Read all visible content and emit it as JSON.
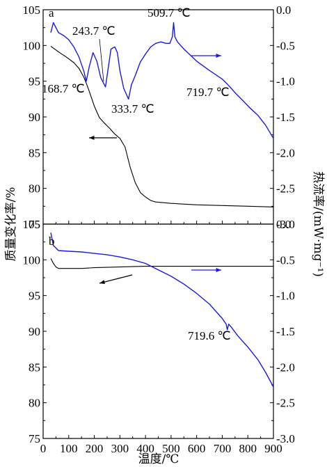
{
  "chart_data": [
    {
      "type": "line",
      "panel_label": "a",
      "xlim": [
        0,
        900
      ],
      "ylim_left": [
        75,
        105
      ],
      "ylim_right": [
        -3.0,
        0.0
      ],
      "x_ticks": [],
      "left_ticks": [
        {
          "value": 105,
          "label": "105"
        },
        {
          "value": 100,
          "label": "100"
        },
        {
          "value": 95,
          "label": "95"
        },
        {
          "value": 90,
          "label": "90"
        },
        {
          "value": 85,
          "label": "85"
        },
        {
          "value": 80,
          "label": "80"
        },
        {
          "value": 75,
          "label": "75"
        }
      ],
      "right_ticks": [
        {
          "value": 0.0,
          "label": "0.0"
        },
        {
          "value": -0.5,
          "label": "-0.5"
        },
        {
          "value": -1.0,
          "label": "-1.0"
        },
        {
          "value": -1.5,
          "label": "-1.5"
        },
        {
          "value": -2.0,
          "label": "-2.0"
        },
        {
          "value": -2.5,
          "label": "-2.5"
        },
        {
          "value": -3.0,
          "label": "-3.0"
        }
      ],
      "series": [
        {
          "axis": "left",
          "color": "#000000",
          "x": [
            30,
            60,
            90,
            120,
            140,
            160,
            170,
            180,
            200,
            220,
            240,
            260,
            280,
            300,
            320,
            340,
            360,
            380,
            400,
            420,
            440,
            500,
            600,
            700,
            800,
            900
          ],
          "y": [
            99.9,
            99.1,
            98.4,
            97.6,
            96.8,
            95.5,
            94.6,
            93.6,
            91.5,
            89.9,
            89.1,
            88.4,
            87.6,
            87.0,
            85.8,
            83.0,
            80.8,
            79.4,
            78.8,
            78.3,
            78.1,
            77.9,
            77.7,
            77.6,
            77.5,
            77.4
          ]
        },
        {
          "axis": "right",
          "color": "#1a1ae6",
          "x": [
            30,
            40,
            60,
            80,
            100,
            120,
            140,
            160,
            168.7,
            180,
            195,
            210,
            225,
            243.7,
            255,
            265,
            280,
            290,
            300,
            315,
            333.7,
            345,
            360,
            380,
            400,
            420,
            440,
            460,
            480,
            495,
            505,
            509.7,
            515,
            525,
            550,
            600,
            650,
            700,
            719.7,
            730,
            750,
            780,
            810,
            840,
            870,
            900
          ],
          "y": [
            -0.32,
            -0.18,
            -0.32,
            -0.36,
            -0.42,
            -0.52,
            -0.66,
            -0.87,
            -1.0,
            -0.8,
            -0.6,
            -0.72,
            -0.95,
            -1.08,
            -0.8,
            -0.55,
            -0.52,
            -0.6,
            -0.85,
            -1.1,
            -1.25,
            -1.05,
            -0.92,
            -0.73,
            -0.62,
            -0.52,
            -0.47,
            -0.45,
            -0.47,
            -0.47,
            -0.38,
            -0.18,
            -0.38,
            -0.45,
            -0.55,
            -0.72,
            -0.85,
            -0.97,
            -1.04,
            -1.08,
            -1.16,
            -1.27,
            -1.38,
            -1.48,
            -1.62,
            -1.8
          ]
        }
      ],
      "annotations": [
        "168.7 ℃",
        "243.7 ℃",
        "333.7 ℃",
        "509.7 ℃",
        "719.7 ℃"
      ]
    },
    {
      "type": "line",
      "panel_label": "b",
      "xlim": [
        0,
        900
      ],
      "ylim_left": [
        75,
        105
      ],
      "ylim_right": [
        -3.0,
        0.0
      ],
      "x_ticks": [
        {
          "value": 0,
          "label": "0"
        },
        {
          "value": 100,
          "label": "100"
        },
        {
          "value": 200,
          "label": "200"
        },
        {
          "value": 300,
          "label": "300"
        },
        {
          "value": 400,
          "label": "400"
        },
        {
          "value": 500,
          "label": "500"
        },
        {
          "value": 600,
          "label": "600"
        },
        {
          "value": 700,
          "label": "700"
        },
        {
          "value": 800,
          "label": "800"
        },
        {
          "value": 900,
          "label": "900"
        }
      ],
      "left_ticks": [
        {
          "value": 105,
          "label": "105"
        },
        {
          "value": 100,
          "label": "100"
        },
        {
          "value": 95,
          "label": "95"
        },
        {
          "value": 90,
          "label": "90"
        },
        {
          "value": 85,
          "label": "85"
        },
        {
          "value": 80,
          "label": "80"
        },
        {
          "value": 75,
          "label": "75"
        }
      ],
      "right_ticks": [
        {
          "value": 0.0,
          "label": "0.0"
        },
        {
          "value": -0.5,
          "label": "-0.5"
        },
        {
          "value": -1.0,
          "label": "-1.0"
        },
        {
          "value": -1.5,
          "label": "-1.5"
        },
        {
          "value": -2.0,
          "label": "-2.0"
        },
        {
          "value": -2.5,
          "label": "-2.5"
        },
        {
          "value": -3.0,
          "label": "-3.0"
        }
      ],
      "series": [
        {
          "axis": "left",
          "color": "#000000",
          "x": [
            30,
            40,
            50,
            60,
            80,
            100,
            150,
            200,
            300,
            400,
            500,
            600,
            700,
            800,
            900
          ],
          "y": [
            100.2,
            99.5,
            99.0,
            98.8,
            98.8,
            98.8,
            98.8,
            98.9,
            99.0,
            99.1,
            99.1,
            99.1,
            99.1,
            99.1,
            99.1
          ]
        },
        {
          "axis": "right",
          "color": "#1a1ae6",
          "x": [
            30,
            40,
            60,
            100,
            150,
            200,
            250,
            300,
            350,
            400,
            450,
            500,
            550,
            600,
            650,
            700,
            715,
            719.6,
            725,
            735,
            760,
            800,
            840,
            870,
            900
          ],
          "y": [
            -0.12,
            -0.3,
            -0.37,
            -0.38,
            -0.39,
            -0.41,
            -0.43,
            -0.46,
            -0.5,
            -0.55,
            -0.64,
            -0.73,
            -0.84,
            -0.97,
            -1.12,
            -1.32,
            -1.4,
            -1.48,
            -1.4,
            -1.44,
            -1.56,
            -1.72,
            -1.9,
            -2.08,
            -2.28
          ]
        }
      ],
      "annotations": [
        "719.6 ℃"
      ]
    }
  ],
  "axis_titles": {
    "x": "温度/℃",
    "y_left": "质量变化率/%",
    "y_right": "热流率/(mW·mg⁻¹)"
  }
}
